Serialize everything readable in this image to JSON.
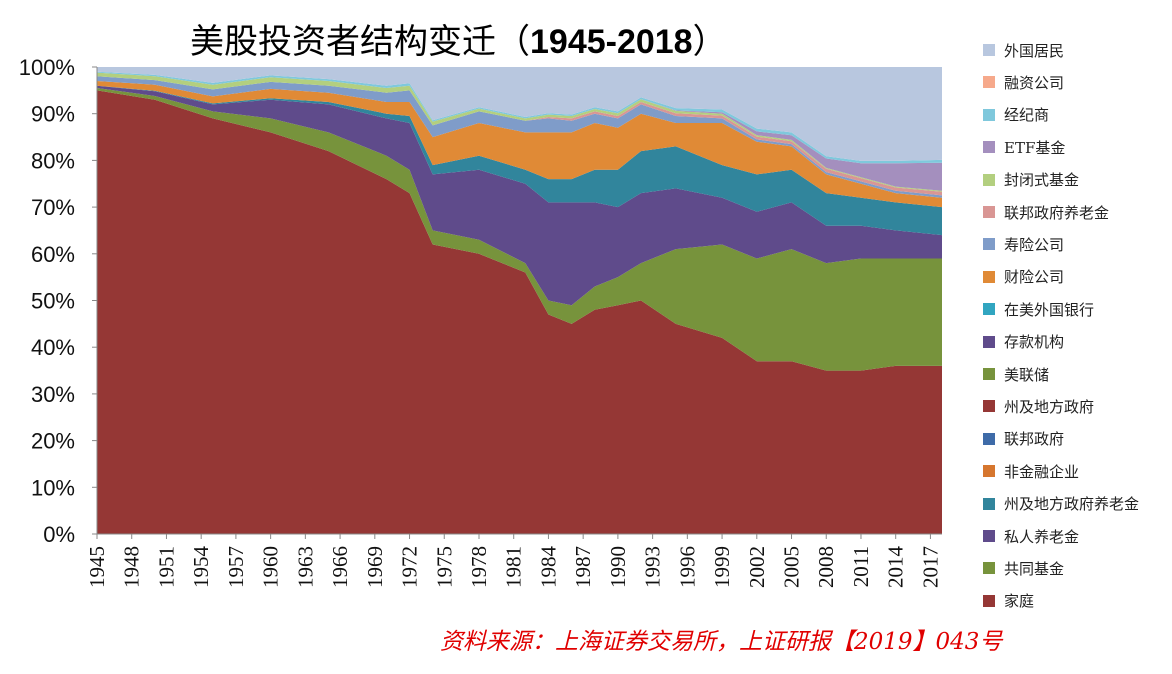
{
  "title": "美股投资者结构变迁（",
  "title_years": "1945-2018",
  "title_close": "）",
  "source": "资料来源：上海证券交易所，上证研报【2019】043号",
  "chart_data": {
    "type": "area",
    "stacked": true,
    "x_start": 1945,
    "x_end": 2018,
    "xticks": [
      "1945",
      "1948",
      "1951",
      "1954",
      "1957",
      "1960",
      "1963",
      "1966",
      "1969",
      "1972",
      "1975",
      "1978",
      "1981",
      "1984",
      "1987",
      "1990",
      "1993",
      "1996",
      "1999",
      "2002",
      "2005",
      "2008",
      "2011",
      "2014",
      "2017"
    ],
    "yticks": [
      "0%",
      "10%",
      "20%",
      "30%",
      "40%",
      "50%",
      "60%",
      "70%",
      "80%",
      "90%",
      "100%"
    ],
    "ylim": [
      0,
      100
    ],
    "legend_position": "right",
    "x_keys": [
      1945,
      1950,
      1955,
      1960,
      1965,
      1970,
      1972,
      1974,
      1978,
      1982,
      1984,
      1986,
      1988,
      1990,
      1992,
      1995,
      1999,
      2002,
      2005,
      2008,
      2011,
      2014,
      2018
    ],
    "series": [
      {
        "name": "家庭",
        "color": "#953735",
        "values": [
          95,
          93,
          89,
          86,
          82,
          76,
          73,
          62,
          60,
          56,
          47,
          45,
          48,
          49,
          50,
          45,
          42,
          37,
          37,
          35,
          35,
          36,
          36
        ]
      },
      {
        "name": "共同基金",
        "color": "#77933C",
        "values": [
          0.5,
          0.8,
          1.5,
          3,
          4,
          5,
          5,
          3,
          3,
          2,
          3,
          4,
          5,
          6,
          8,
          16,
          20,
          22,
          24,
          23,
          24,
          23,
          23
        ]
      },
      {
        "name": "私人养老金",
        "color": "#5F4B8B",
        "values": [
          0.5,
          1,
          1.5,
          4,
          6,
          8,
          10,
          12,
          15,
          17,
          21,
          22,
          18,
          15,
          15,
          13,
          10,
          10,
          10,
          8,
          7,
          6,
          5
        ]
      },
      {
        "name": "州及地方政府养老金",
        "color": "#31859C",
        "values": [
          0,
          0.1,
          0.2,
          0.3,
          0.5,
          1,
          1.5,
          2,
          3,
          3,
          5,
          5,
          7,
          8,
          9,
          9,
          7,
          8,
          7,
          7,
          6,
          6,
          6
        ]
      },
      {
        "name": "非金融企业",
        "color": "#C0504D",
        "values": [
          0,
          0,
          0,
          0,
          0,
          0,
          0,
          0,
          0,
          0,
          0,
          0,
          0,
          0,
          0,
          0,
          0,
          0,
          0,
          0,
          0,
          0,
          0
        ]
      },
      {
        "name": "联邦政府",
        "color": "#4F81BD",
        "values": [
          0,
          0,
          0,
          0,
          0,
          0,
          0,
          0,
          0,
          0,
          0,
          0,
          0,
          0,
          0,
          0,
          0,
          0,
          0,
          0,
          0,
          0,
          0
        ]
      },
      {
        "name": "州及地方政府",
        "color": "#C0504D",
        "values": [
          0,
          0,
          0,
          0,
          0,
          0,
          0,
          0,
          0,
          0,
          0,
          0,
          0,
          0,
          0,
          0,
          0,
          0,
          0,
          0,
          0,
          0,
          0
        ]
      },
      {
        "name": "美联储",
        "color": "#9BBB59",
        "values": [
          0,
          0,
          0,
          0,
          0,
          0,
          0,
          0,
          0,
          0,
          0,
          0,
          0,
          0,
          0,
          0,
          0,
          0,
          0,
          0,
          0,
          0,
          0
        ]
      },
      {
        "name": "存款机构",
        "color": "#8064A2",
        "values": [
          0,
          0,
          0,
          0,
          0,
          0,
          0,
          0,
          0,
          0,
          0,
          0,
          0,
          0,
          0,
          0,
          0,
          0,
          0,
          0,
          0,
          0,
          0
        ]
      },
      {
        "name": "在美外国银行",
        "color": "#4BACC6",
        "values": [
          0,
          0,
          0,
          0,
          0,
          0,
          0,
          0,
          0,
          0,
          0,
          0,
          0,
          0,
          0,
          0,
          0,
          0,
          0,
          0,
          0,
          0,
          0
        ]
      },
      {
        "name": "财险公司",
        "color": "#E08A36",
        "values": [
          1,
          1.3,
          1.5,
          2,
          2,
          2.5,
          3,
          6,
          7,
          8,
          10,
          10,
          10,
          9,
          8,
          5,
          9,
          7,
          5,
          4,
          3,
          2,
          2
        ]
      },
      {
        "name": "寿险公司",
        "color": "#7F9CC9",
        "values": [
          1,
          1,
          1.5,
          1.5,
          1.5,
          2,
          2.5,
          2.5,
          2.5,
          2.5,
          3,
          2.5,
          2,
          2,
          2,
          1.5,
          1,
          0.5,
          0.5,
          0.5,
          0.5,
          0.5,
          0.5
        ]
      },
      {
        "name": "联邦政府养老金",
        "color": "#D99694",
        "values": [
          0,
          0,
          0,
          0,
          0,
          0,
          0,
          0,
          0,
          0,
          0.3,
          0.5,
          0.5,
          0.5,
          0.5,
          0.6,
          0.6,
          0.6,
          0.6,
          0.7,
          0.7,
          0.7,
          0.8
        ]
      },
      {
        "name": "封闭式基金",
        "color": "#B3CF7F",
        "values": [
          0.8,
          0.8,
          1,
          1,
          1,
          1,
          1,
          0.8,
          0.6,
          0.5,
          0.5,
          0.5,
          0.5,
          0.6,
          0.6,
          0.5,
          0.4,
          0.3,
          0.3,
          0.2,
          0.2,
          0.2,
          0.2
        ]
      },
      {
        "name": "ETF基金",
        "color": "#A48FBE",
        "values": [
          0,
          0,
          0,
          0,
          0,
          0,
          0,
          0,
          0,
          0,
          0,
          0,
          0,
          0,
          0,
          0.1,
          0.3,
          0.8,
          1,
          2,
          3,
          5,
          6
        ]
      },
      {
        "name": "经纪商",
        "color": "#7FC8DC",
        "values": [
          0.2,
          0.3,
          0.4,
          0.4,
          0.4,
          0.5,
          0.5,
          0.3,
          0.3,
          0.3,
          0.3,
          0.3,
          0.4,
          0.4,
          0.4,
          0.5,
          0.6,
          0.6,
          0.6,
          0.5,
          0.5,
          0.5,
          0.6
        ]
      },
      {
        "name": "融资公司",
        "color": "#F6A98B",
        "values": [
          0,
          0,
          0,
          0,
          0,
          0,
          0,
          0,
          0,
          0,
          0,
          0,
          0,
          0,
          0,
          0,
          0,
          0,
          0,
          0,
          0,
          0,
          0
        ]
      },
      {
        "name": "外国居民",
        "color": "#B8C7DF",
        "values": "remainder"
      }
    ],
    "legend": [
      {
        "label": "外国居民",
        "color": "#B8C7DF"
      },
      {
        "label": "融资公司",
        "color": "#F6A98B"
      },
      {
        "label": "经纪商",
        "color": "#7FC8DC"
      },
      {
        "label": "ETF基金",
        "color": "#A48FBE"
      },
      {
        "label": "封闭式基金",
        "color": "#B3CF7F"
      },
      {
        "label": "联邦政府养老金",
        "color": "#D99694"
      },
      {
        "label": "寿险公司",
        "color": "#7F9CC9"
      },
      {
        "label": "财险公司",
        "color": "#E08A36"
      },
      {
        "label": "在美外国银行",
        "color": "#31A5C0"
      },
      {
        "label": "存款机构",
        "color": "#5F4B8B"
      },
      {
        "label": "美联储",
        "color": "#77933C"
      },
      {
        "label": "州及地方政府",
        "color": "#953735"
      },
      {
        "label": "联邦政府",
        "color": "#3E6BA8"
      },
      {
        "label": "非金融企业",
        "color": "#D6762E"
      },
      {
        "label": "州及地方政府养老金",
        "color": "#31859C"
      },
      {
        "label": "私人养老金",
        "color": "#5F4B8B"
      },
      {
        "label": "共同基金",
        "color": "#77933C"
      },
      {
        "label": "家庭",
        "color": "#953735"
      }
    ]
  }
}
